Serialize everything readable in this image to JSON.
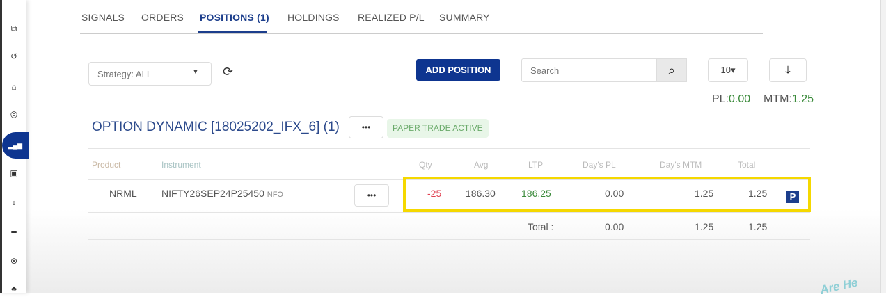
{
  "sidebar": {
    "items": [
      {
        "icon": "puzzle-icon",
        "glyph": "⧉"
      },
      {
        "icon": "history-icon",
        "glyph": "↺"
      },
      {
        "icon": "basket-icon",
        "glyph": "⌂"
      },
      {
        "icon": "target-icon",
        "glyph": "◎"
      },
      {
        "icon": "signal-bars-icon",
        "glyph": "▂▄▆",
        "active": true
      },
      {
        "icon": "frame-icon",
        "glyph": "▣"
      },
      {
        "icon": "satellite-icon",
        "glyph": "⟟"
      },
      {
        "icon": "database-icon",
        "glyph": "≣"
      },
      {
        "icon": "lifebuoy-icon",
        "glyph": "⊗"
      },
      {
        "icon": "network-icon",
        "glyph": "♣"
      }
    ]
  },
  "tabs": [
    "SIGNALS",
    "ORDERS",
    "POSITIONS (1)",
    "HOLDINGS",
    "REALIZED P/L",
    "SUMMARY"
  ],
  "active_tab": "POSITIONS (1)",
  "toolbar": {
    "strategy": "Strategy: ALL",
    "add_position": "ADD POSITION",
    "search_placeholder": "Search",
    "page_size": "10▾"
  },
  "summary": {
    "pl_label": "PL:",
    "pl_value": "0.00",
    "mtm_label": "MTM:",
    "mtm_value": "1.25"
  },
  "strategy_group": {
    "title": "OPTION DYNAMIC [18025202_IFX_6] (1)",
    "more": "•••",
    "badge": "PAPER TRADE ACTIVE"
  },
  "table": {
    "headers": {
      "product": "Product",
      "instrument": "Instrument",
      "qty": "Qty",
      "avg": "Avg",
      "ltp": "LTP",
      "days_pl": "Day's PL",
      "days_mtm": "Day's MTM",
      "total": "Total"
    },
    "rows": [
      {
        "product": "NRML",
        "instrument": "NIFTY26SEP24P25450",
        "exchange": "NFO",
        "more": "•••",
        "qty": "-25",
        "avg": "186.30",
        "ltp": "186.25",
        "days_pl": "0.00",
        "days_mtm": "1.25",
        "total": "1.25",
        "flag": "P"
      }
    ],
    "totals": {
      "label": "Total :",
      "days_pl": "0.00",
      "days_mtm": "1.25",
      "total": "1.25"
    }
  },
  "colors": {
    "accent": "#0e3590",
    "positive": "#3a8a3a",
    "negative": "#e04050",
    "highlight": "#f5d800",
    "badge_bg": "#e8f6e8"
  },
  "watermark": "Are Here"
}
